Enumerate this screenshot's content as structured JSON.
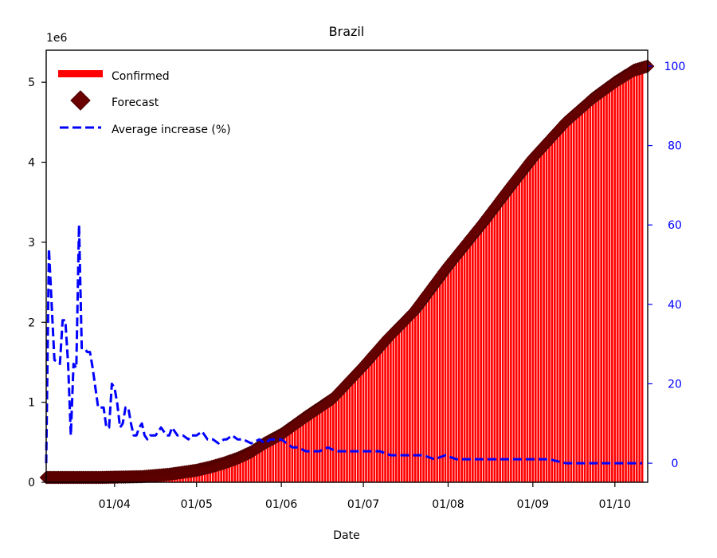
{
  "chart_data": {
    "type": "bar",
    "title": "Brazil",
    "xlabel": "Date",
    "ylabel": "",
    "y_offset_label": "1e6",
    "ylim": [
      0,
      5.4
    ],
    "yticks": [
      0,
      1,
      2,
      3,
      4,
      5
    ],
    "y2lim": [
      -4.8,
      104
    ],
    "y2ticks": [
      0,
      20,
      40,
      60,
      80,
      100
    ],
    "x_range_days": [
      0,
      220
    ],
    "x_start": "2020-03-07",
    "xticks": [
      {
        "day": 25,
        "label": "01/04"
      },
      {
        "day": 55,
        "label": "01/05"
      },
      {
        "day": 86,
        "label": "01/06"
      },
      {
        "day": 116,
        "label": "01/07"
      },
      {
        "day": 147,
        "label": "01/08"
      },
      {
        "day": 178,
        "label": "01/09"
      },
      {
        "day": 208,
        "label": "01/10"
      }
    ],
    "legend": {
      "placement": "top-left",
      "entries": [
        "Confirmed",
        "Forecast",
        "Average increase (%)"
      ]
    },
    "series": [
      {
        "name": "Confirmed",
        "kind": "bar",
        "color": "#ff0000",
        "unit": "millions",
        "points": [
          [
            0,
            0
          ],
          [
            20,
            0.003
          ],
          [
            35,
            0.02
          ],
          [
            45,
            0.05
          ],
          [
            55,
            0.09
          ],
          [
            60,
            0.13
          ],
          [
            65,
            0.18
          ],
          [
            70,
            0.25
          ],
          [
            75,
            0.33
          ],
          [
            80,
            0.45
          ],
          [
            86,
            0.55
          ],
          [
            95,
            0.78
          ],
          [
            105,
            1.0
          ],
          [
            116,
            1.4
          ],
          [
            125,
            1.75
          ],
          [
            135,
            2.1
          ],
          [
            147,
            2.65
          ],
          [
            160,
            3.2
          ],
          [
            170,
            3.65
          ],
          [
            178,
            4.0
          ],
          [
            190,
            4.45
          ],
          [
            200,
            4.75
          ],
          [
            208,
            4.95
          ],
          [
            215,
            5.1
          ],
          [
            218,
            5.15
          ]
        ]
      },
      {
        "name": "Forecast",
        "kind": "scatter",
        "marker": "diamond",
        "color": "#6b0000",
        "unit": "millions",
        "points": [
          [
            0,
            0.06
          ],
          [
            20,
            0.06
          ],
          [
            35,
            0.07
          ],
          [
            45,
            0.1
          ],
          [
            55,
            0.15
          ],
          [
            60,
            0.19
          ],
          [
            65,
            0.24
          ],
          [
            70,
            0.3
          ],
          [
            75,
            0.38
          ],
          [
            80,
            0.49
          ],
          [
            86,
            0.6
          ],
          [
            95,
            0.82
          ],
          [
            105,
            1.05
          ],
          [
            116,
            1.45
          ],
          [
            125,
            1.8
          ],
          [
            135,
            2.15
          ],
          [
            147,
            2.7
          ],
          [
            160,
            3.25
          ],
          [
            170,
            3.7
          ],
          [
            178,
            4.05
          ],
          [
            190,
            4.5
          ],
          [
            200,
            4.8
          ],
          [
            208,
            5.0
          ],
          [
            215,
            5.15
          ],
          [
            220,
            5.2
          ]
        ]
      },
      {
        "name": "Average increase (%)",
        "kind": "line",
        "style": "dashed",
        "color": "#0000ff",
        "axis": "right",
        "points": [
          [
            0,
            0
          ],
          [
            1,
            54
          ],
          [
            3,
            26
          ],
          [
            5,
            25
          ],
          [
            6,
            36
          ],
          [
            7,
            36
          ],
          [
            8,
            25
          ],
          [
            9,
            7
          ],
          [
            10,
            25
          ],
          [
            11,
            24
          ],
          [
            12,
            60
          ],
          [
            13,
            29
          ],
          [
            14,
            29
          ],
          [
            15,
            28
          ],
          [
            16,
            28
          ],
          [
            17,
            24
          ],
          [
            19,
            14
          ],
          [
            20,
            14
          ],
          [
            21,
            14
          ],
          [
            22,
            9
          ],
          [
            23,
            9
          ],
          [
            24,
            20
          ],
          [
            25,
            19
          ],
          [
            26,
            15
          ],
          [
            27,
            9
          ],
          [
            28,
            10
          ],
          [
            29,
            14
          ],
          [
            30,
            14
          ],
          [
            31,
            10
          ],
          [
            32,
            7
          ],
          [
            33,
            7
          ],
          [
            34,
            9
          ],
          [
            35,
            10
          ],
          [
            36,
            7
          ],
          [
            37,
            6
          ],
          [
            38,
            7
          ],
          [
            40,
            7
          ],
          [
            41,
            8
          ],
          [
            42,
            9
          ],
          [
            43,
            8
          ],
          [
            44,
            7
          ],
          [
            45,
            7
          ],
          [
            46,
            9
          ],
          [
            47,
            8
          ],
          [
            48,
            7
          ],
          [
            50,
            7
          ],
          [
            52,
            6
          ],
          [
            53,
            7
          ],
          [
            55,
            7
          ],
          [
            57,
            8
          ],
          [
            59,
            6
          ],
          [
            61,
            6
          ],
          [
            63,
            5
          ],
          [
            65,
            6
          ],
          [
            66,
            6
          ],
          [
            68,
            7
          ],
          [
            70,
            6
          ],
          [
            72,
            6
          ],
          [
            75,
            5
          ],
          [
            78,
            6
          ],
          [
            80,
            5
          ],
          [
            82,
            6
          ],
          [
            84,
            6
          ],
          [
            86,
            6
          ],
          [
            88,
            5
          ],
          [
            90,
            4
          ],
          [
            92,
            4
          ],
          [
            95,
            3
          ],
          [
            98,
            3
          ],
          [
            100,
            3
          ],
          [
            103,
            4
          ],
          [
            106,
            3
          ],
          [
            110,
            3
          ],
          [
            114,
            3
          ],
          [
            118,
            3
          ],
          [
            122,
            3
          ],
          [
            126,
            2
          ],
          [
            130,
            2
          ],
          [
            134,
            2
          ],
          [
            138,
            2
          ],
          [
            142,
            1
          ],
          [
            146,
            2
          ],
          [
            150,
            1
          ],
          [
            155,
            1
          ],
          [
            160,
            1
          ],
          [
            166,
            1
          ],
          [
            172,
            1
          ],
          [
            178,
            1
          ],
          [
            184,
            1
          ],
          [
            190,
            0
          ],
          [
            196,
            0
          ],
          [
            202,
            0
          ],
          [
            208,
            0
          ],
          [
            214,
            0
          ],
          [
            218,
            0
          ]
        ]
      }
    ]
  }
}
